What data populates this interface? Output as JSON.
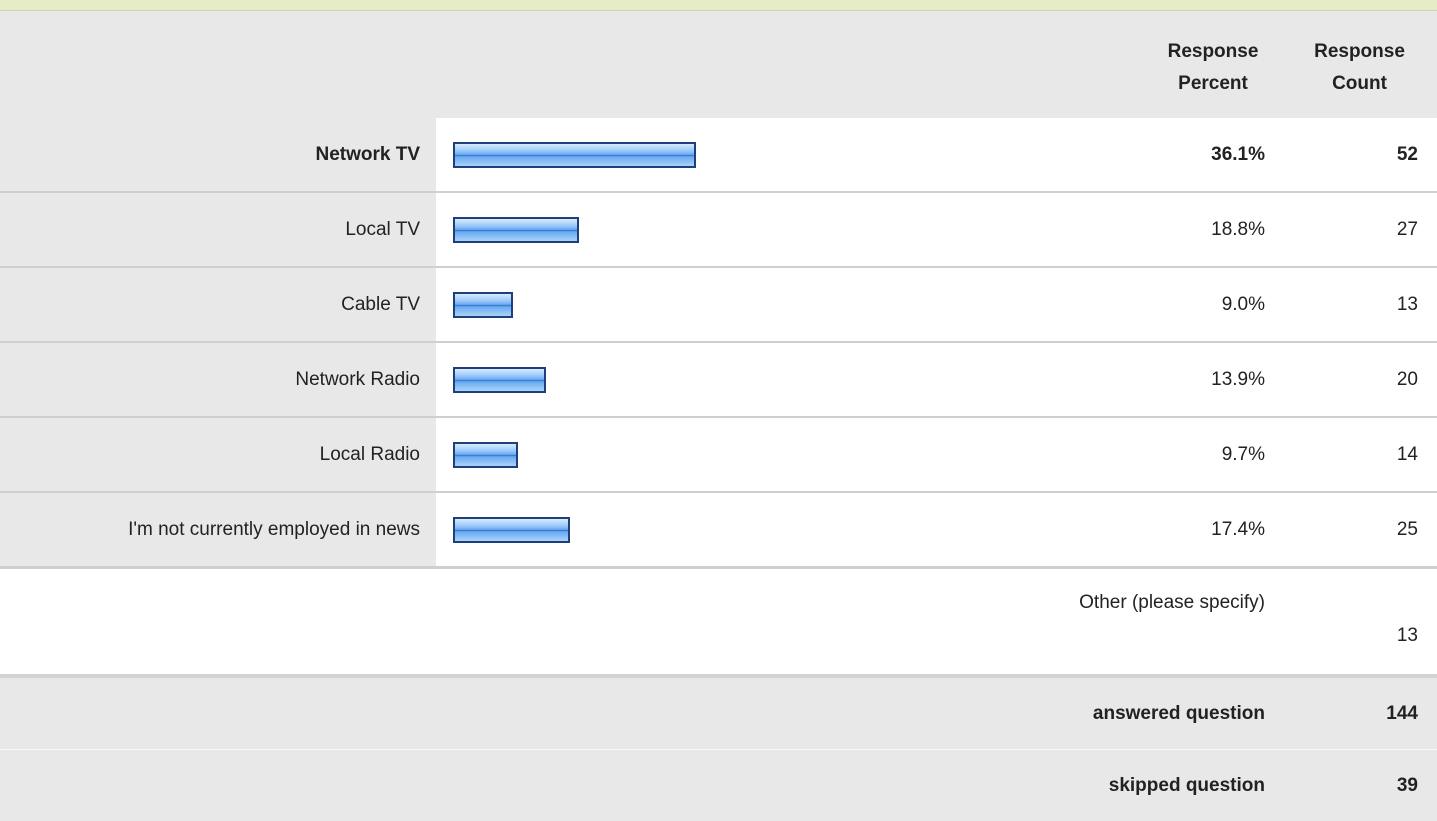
{
  "header": {
    "response_percent": "Response Percent",
    "response_count": "Response Count"
  },
  "chart_data": {
    "type": "bar",
    "categories": [
      "Network TV",
      "Local TV",
      "Cable TV",
      "Network Radio",
      "Local Radio",
      "I'm not currently employed in news"
    ],
    "percent_labels": [
      "36.1%",
      "18.8%",
      "9.0%",
      "13.9%",
      "9.7%",
      "17.4%"
    ],
    "values": [
      36.1,
      18.8,
      9.0,
      13.9,
      9.7,
      17.4
    ],
    "counts": [
      52,
      27,
      13,
      20,
      14,
      25
    ],
    "xlim": [
      0,
      100
    ],
    "highlighted": "Network TV",
    "bar_color": "#6aaaf0",
    "bar_border_color": "#1f3f7a"
  },
  "other": {
    "label": "Other (please specify)",
    "count": "13"
  },
  "summary": {
    "answered_label": "answered question",
    "answered_value": "144",
    "skipped_label": "skipped question",
    "skipped_value": "39"
  }
}
